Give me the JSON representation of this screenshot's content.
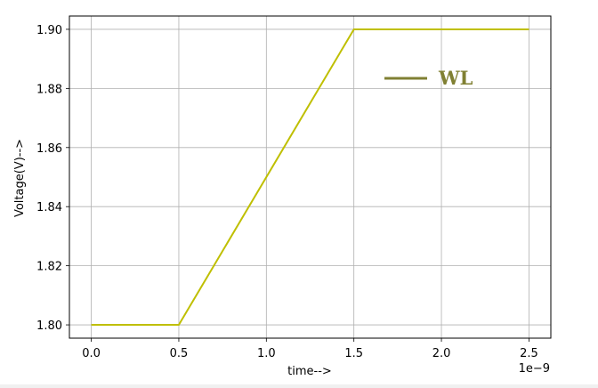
{
  "chart_data": {
    "type": "line",
    "title": "",
    "xlabel": "time-->",
    "ylabel": "Voltage(V)-->",
    "x_offset_label": "1e−9",
    "xlim": [
      -0.125,
      2.625
    ],
    "ylim": [
      1.7955,
      1.9045
    ],
    "x_ticks": [
      0.0,
      0.5,
      1.0,
      1.5,
      2.0,
      2.5
    ],
    "x_tick_labels": [
      "0.0",
      "0.5",
      "1.0",
      "1.5",
      "2.0",
      "2.5"
    ],
    "y_ticks": [
      1.8,
      1.82,
      1.84,
      1.86,
      1.88,
      1.9
    ],
    "y_tick_labels": [
      "1.80",
      "1.82",
      "1.84",
      "1.86",
      "1.88",
      "1.90"
    ],
    "grid": true,
    "legend_position": "upper-right",
    "series": [
      {
        "name": "WL",
        "color": "#bfbf00",
        "legend_color": "#808033",
        "x": [
          0.0,
          0.5,
          1.5,
          2.5
        ],
        "y": [
          1.8,
          1.8,
          1.9,
          1.9
        ]
      }
    ]
  }
}
